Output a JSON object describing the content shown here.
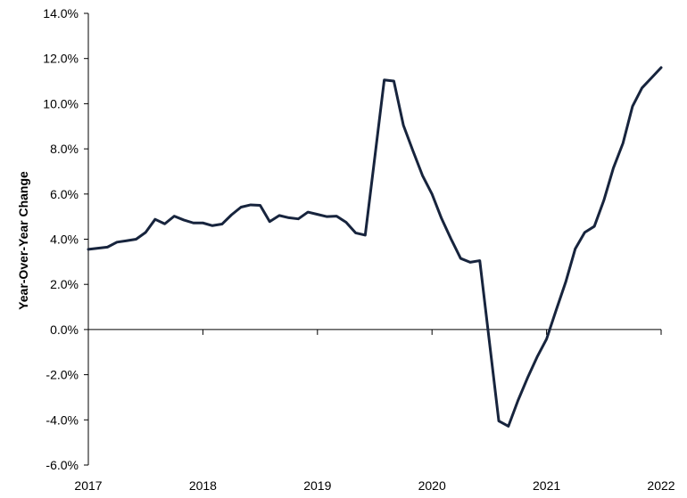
{
  "colors": {
    "line": "#17243d",
    "axis": "#000000",
    "background": "#ffffff"
  },
  "chart_data": {
    "type": "line",
    "title": "",
    "xlabel": "",
    "ylabel": "Year-Over-Year Change",
    "xlim": [
      2017.0,
      2022.0
    ],
    "ylim": [
      -6.0,
      14.0
    ],
    "x_ticks": [
      "2017",
      "2018",
      "2019",
      "2020",
      "2021",
      "2022"
    ],
    "y_ticks": [
      "-6.0%",
      "-4.0%",
      "-2.0%",
      "0.0%",
      "2.0%",
      "4.0%",
      "6.0%",
      "8.0%",
      "10.0%",
      "12.0%",
      "14.0%"
    ],
    "grid": false,
    "legend": "none",
    "series": [
      {
        "x": [
          2017.0,
          2017.083,
          2017.167,
          2017.25,
          2017.333,
          2017.417,
          2017.5,
          2017.583,
          2017.667,
          2017.75,
          2017.833,
          2017.917,
          2018.0,
          2018.083,
          2018.167,
          2018.25,
          2018.333,
          2018.417,
          2018.5,
          2018.583,
          2018.667,
          2018.75,
          2018.833,
          2018.917,
          2019.0,
          2019.083,
          2019.167,
          2019.25,
          2019.333,
          2019.417,
          2019.5,
          2019.583,
          2019.667,
          2019.75,
          2019.833,
          2019.917,
          2020.0,
          2020.083,
          2020.167,
          2020.25,
          2020.333,
          2020.417,
          2020.5,
          2020.583,
          2020.667,
          2020.75,
          2020.833,
          2020.917,
          2021.0,
          2021.083,
          2021.167,
          2021.25,
          2021.333,
          2021.417,
          2021.5,
          2021.583,
          2021.667,
          2021.75,
          2021.833,
          2021.917,
          2022.0
        ],
        "values": [
          3.55,
          3.6,
          3.65,
          3.87,
          3.93,
          4.0,
          4.3,
          4.88,
          4.68,
          5.02,
          4.85,
          4.72,
          4.72,
          4.6,
          4.67,
          5.08,
          5.42,
          5.52,
          5.5,
          4.78,
          5.05,
          4.95,
          4.9,
          5.2,
          5.1,
          5.0,
          5.02,
          4.75,
          4.28,
          4.18,
          7.6,
          11.05,
          11.0,
          9.05,
          7.92,
          6.82,
          6.0,
          4.92,
          4.0,
          3.15,
          2.98,
          3.05,
          -0.5,
          -4.05,
          -4.28,
          -3.15,
          -2.15,
          -1.22,
          -0.42,
          0.85,
          2.1,
          3.57,
          4.3,
          4.57,
          5.72,
          7.15,
          8.25,
          9.88,
          10.7,
          11.15,
          11.6
        ]
      }
    ]
  }
}
